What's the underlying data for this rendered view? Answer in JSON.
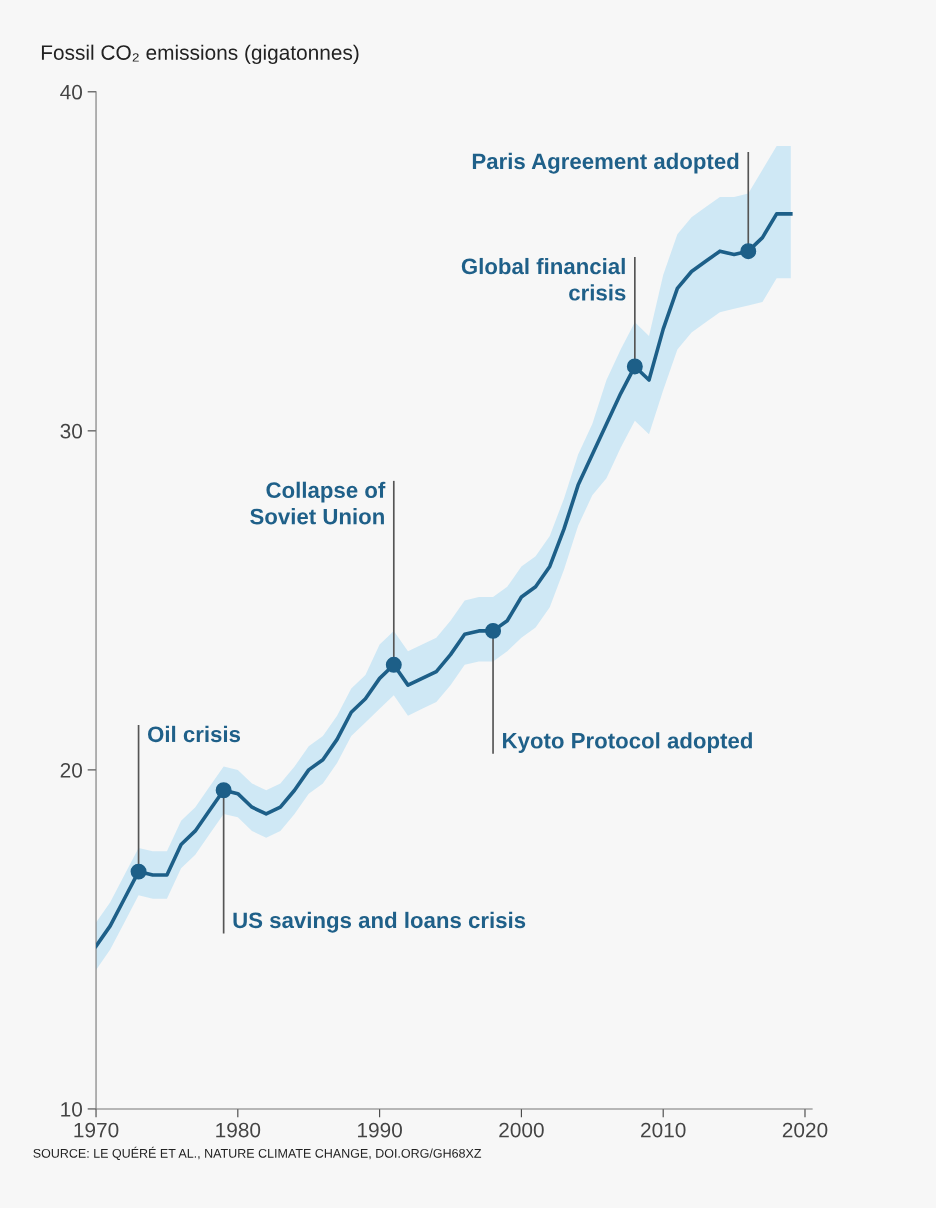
{
  "chart_data": {
    "type": "line",
    "ylabel": "Fossil CO₂ emissions (gigatonnes)",
    "x": [
      1970,
      1971,
      1972,
      1973,
      1974,
      1975,
      1976,
      1977,
      1978,
      1979,
      1980,
      1981,
      1982,
      1983,
      1984,
      1985,
      1986,
      1987,
      1988,
      1989,
      1990,
      1991,
      1992,
      1993,
      1994,
      1995,
      1996,
      1997,
      1998,
      1999,
      2000,
      2001,
      2002,
      2003,
      2004,
      2005,
      2006,
      2007,
      2008,
      2009,
      2010,
      2011,
      2012,
      2013,
      2014,
      2015,
      2016,
      2017,
      2018,
      2019
    ],
    "series": [
      {
        "color": "#1d5f88",
        "marker": "none",
        "line_style": "solid",
        "values": [
          14.8,
          15.4,
          16.2,
          17.0,
          16.9,
          16.9,
          17.8,
          18.2,
          18.8,
          19.4,
          19.3,
          18.9,
          18.7,
          18.9,
          19.4,
          20.0,
          20.3,
          20.9,
          21.7,
          22.1,
          22.7,
          23.1,
          22.5,
          22.7,
          22.9,
          23.4,
          24.0,
          24.1,
          24.1,
          24.4,
          25.1,
          25.4,
          26.0,
          27.1,
          28.4,
          29.3,
          30.2,
          31.1,
          31.9,
          31.5,
          33.0,
          34.2,
          34.7,
          35.0,
          35.3,
          35.2,
          35.3,
          35.7,
          36.4,
          36.4
        ],
        "upper": [
          15.5,
          16.1,
          16.9,
          17.7,
          17.6,
          17.6,
          18.5,
          18.9,
          19.5,
          20.1,
          20.0,
          19.6,
          19.4,
          19.6,
          20.1,
          20.7,
          21.0,
          21.6,
          22.4,
          22.8,
          23.7,
          24.1,
          23.5,
          23.7,
          23.9,
          24.4,
          25.0,
          25.1,
          25.1,
          25.4,
          26.0,
          26.3,
          26.9,
          28.0,
          29.3,
          30.2,
          31.5,
          32.4,
          33.2,
          32.8,
          34.6,
          35.8,
          36.3,
          36.6,
          36.9,
          36.9,
          37.0,
          37.7,
          38.4,
          38.4
        ],
        "lower": [
          14.1,
          14.7,
          15.5,
          16.3,
          16.2,
          16.2,
          17.1,
          17.5,
          18.1,
          18.7,
          18.6,
          18.2,
          18.0,
          18.2,
          18.7,
          19.3,
          19.6,
          20.2,
          21.0,
          21.4,
          21.8,
          22.2,
          21.6,
          21.8,
          22.0,
          22.5,
          23.1,
          23.2,
          23.2,
          23.5,
          23.9,
          24.2,
          24.8,
          25.9,
          27.2,
          28.1,
          28.6,
          29.5,
          30.3,
          29.9,
          31.2,
          32.4,
          32.9,
          33.2,
          33.5,
          33.6,
          33.7,
          33.8,
          34.5,
          34.5
        ]
      },
      {
        "type": "scatter",
        "color": "#1d5f88",
        "marker": "circle",
        "x": [
          1973,
          1979,
          1991,
          1998,
          2008,
          2016
        ],
        "values": [
          17.0,
          19.4,
          23.1,
          24.1,
          31.9,
          35.3
        ]
      }
    ],
    "annotations": [
      {
        "text": "Oil crisis",
        "x": 1973,
        "y": 17.0
      },
      {
        "text": "US savings and loans crisis",
        "x": 1979,
        "y": 19.4
      },
      {
        "text": "Collapse of\nSoviet Union",
        "x": 1991,
        "y": 23.1
      },
      {
        "text": "Kyoto Protocol adopted",
        "x": 1998,
        "y": 24.1
      },
      {
        "text": "Global financial\ncrisis",
        "x": 2008,
        "y": 31.9
      },
      {
        "text": "Paris Agreement adopted",
        "x": 2016,
        "y": 35.3
      },
      "SOURCE: LE QUÉRÉ ET AL., NATURE CLIMATE CHANGE, DOI.ORG/GH68XZ"
    ],
    "xlim": [
      1970,
      2020.5
    ],
    "ylim": [
      10,
      40
    ],
    "xticks": [
      1970,
      1980,
      1990,
      2000,
      2010,
      2020
    ],
    "yticks": [
      10,
      20,
      30,
      40
    ],
    "grid": false
  }
}
